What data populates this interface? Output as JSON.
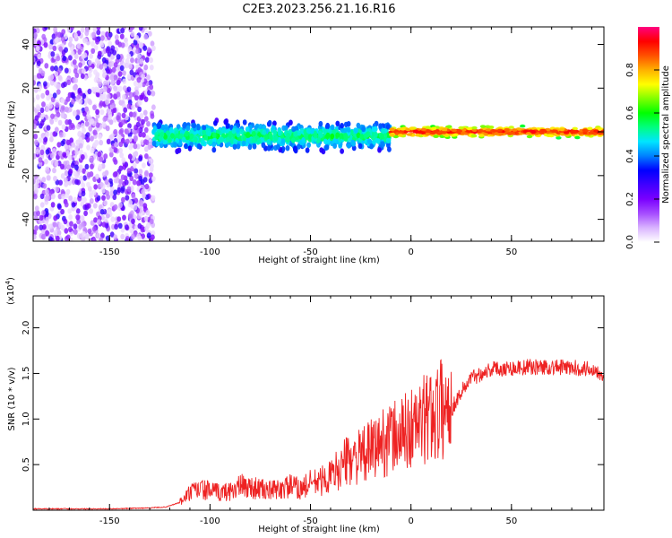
{
  "figure": {
    "title": "C2E3.2023.256.21.16.R16"
  },
  "chart_data": [
    {
      "type": "heatmap",
      "xlabel": "Height of straight line (km)",
      "ylabel": "Frequency (Hz)",
      "xlim": [
        -188,
        96
      ],
      "ylim": [
        -50,
        48
      ],
      "xticks": [
        -150,
        -100,
        -50,
        0,
        50
      ],
      "yticks": [
        -40,
        -20,
        0,
        20,
        40
      ],
      "colorbar": {
        "label": "Normalized spectral amplitude",
        "range": [
          0,
          1
        ],
        "ticks": [
          0.0,
          0.2,
          0.4,
          0.6,
          0.8
        ],
        "colormap": [
          "#ffffff",
          "#d9b3ff",
          "#a64dff",
          "#7a00ff",
          "#4000ff",
          "#0000ff",
          "#0080ff",
          "#00e5ff",
          "#00ff80",
          "#00ff00",
          "#80ff00",
          "#ffff00",
          "#ffb000",
          "#ff5000",
          "#ff0000",
          "#ff0080"
        ]
      },
      "regions": [
        {
          "x_range": [
            -188,
            -128
          ],
          "freq_spread": 48,
          "amplitude": [
            0.03,
            0.3
          ],
          "description": "broadband noise"
        },
        {
          "x_range": [
            -128,
            -10
          ],
          "center_freq": -2,
          "freq_spread": 8,
          "amplitude": [
            0.3,
            0.6
          ]
        },
        {
          "x_range": [
            -10,
            96
          ],
          "center_freq": 0,
          "freq_spread": 3,
          "amplitude": [
            0.6,
            0.98
          ]
        }
      ]
    },
    {
      "type": "line",
      "xlabel": "Height of straight line (km)",
      "ylabel": "SNR (10 * v/v)",
      "yscale_label": "(x10",
      "yscale_exp": "4",
      "yscale_close": ")",
      "xlim": [
        -188,
        96
      ],
      "ylim": [
        0,
        2.35
      ],
      "xticks": [
        -150,
        -100,
        -50,
        0,
        50
      ],
      "yticks": [
        0.5,
        1.0,
        1.5,
        2.0
      ],
      "series": [
        {
          "color": "#ee2222",
          "x": [
            -188,
            -170,
            -150,
            -130,
            -122,
            -115,
            -110,
            -105,
            -100,
            -95,
            -90,
            -85,
            -80,
            -75,
            -70,
            -65,
            -60,
            -55,
            -50,
            -45,
            -40,
            -35,
            -30,
            -25,
            -20,
            -15,
            -10,
            -5,
            0,
            5,
            10,
            15,
            20,
            25,
            30,
            35,
            40,
            50,
            60,
            70,
            80,
            90,
            96
          ],
          "y": [
            0.01,
            0.01,
            0.01,
            0.02,
            0.03,
            0.08,
            0.18,
            0.22,
            0.2,
            0.18,
            0.2,
            0.25,
            0.24,
            0.22,
            0.2,
            0.22,
            0.25,
            0.22,
            0.28,
            0.3,
            0.35,
            0.45,
            0.55,
            0.55,
            0.62,
            0.7,
            0.75,
            0.78,
            0.85,
            0.9,
            1.0,
            1.05,
            1.1,
            1.3,
            1.45,
            1.5,
            1.55,
            1.56,
            1.57,
            1.57,
            1.56,
            1.55,
            1.5
          ]
        }
      ]
    }
  ]
}
